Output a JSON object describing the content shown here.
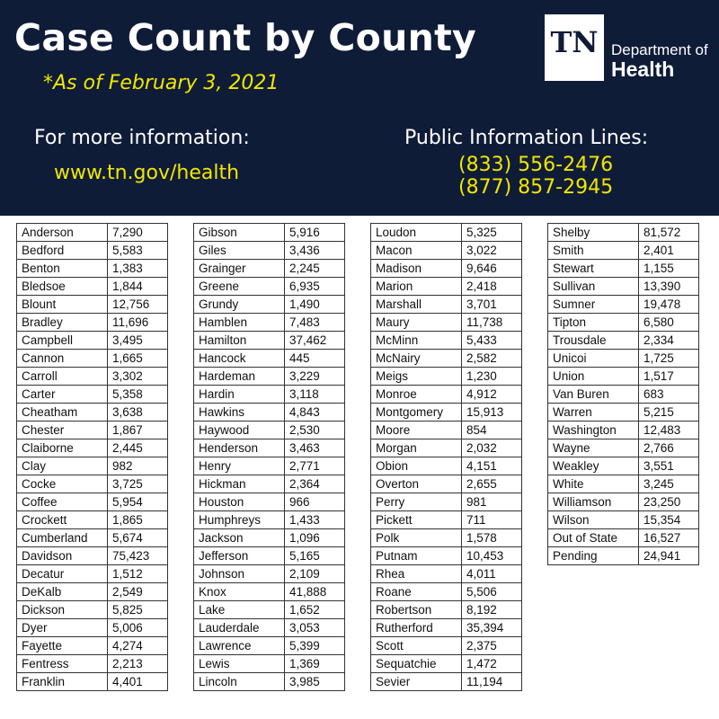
{
  "header": {
    "title": "Case Count by County",
    "as_of": "*As of February 3, 2021",
    "more_info_label": "For more information:",
    "website": "www.tn.gov/health",
    "public_lines_label": "Public Information Lines:",
    "phone_1": "(833) 556-2476",
    "phone_2": "(877) 857-2945",
    "logo": {
      "mark": "TN",
      "dept": "Department of",
      "name": "Health"
    }
  },
  "columns": [
    [
      [
        "Anderson",
        "7,290"
      ],
      [
        "Bedford",
        "5,583"
      ],
      [
        "Benton",
        "1,383"
      ],
      [
        "Bledsoe",
        "1,844"
      ],
      [
        "Blount",
        "12,756"
      ],
      [
        "Bradley",
        "11,696"
      ],
      [
        "Campbell",
        "3,495"
      ],
      [
        "Cannon",
        "1,665"
      ],
      [
        "Carroll",
        "3,302"
      ],
      [
        "Carter",
        "5,358"
      ],
      [
        "Cheatham",
        "3,638"
      ],
      [
        "Chester",
        "1,867"
      ],
      [
        "Claiborne",
        "2,445"
      ],
      [
        "Clay",
        "982"
      ],
      [
        "Cocke",
        "3,725"
      ],
      [
        "Coffee",
        "5,954"
      ],
      [
        "Crockett",
        "1,865"
      ],
      [
        "Cumberland",
        "5,674"
      ],
      [
        "Davidson",
        "75,423"
      ],
      [
        "Decatur",
        "1,512"
      ],
      [
        "DeKalb",
        "2,549"
      ],
      [
        "Dickson",
        "5,825"
      ],
      [
        "Dyer",
        "5,006"
      ],
      [
        "Fayette",
        "4,274"
      ],
      [
        "Fentress",
        "2,213"
      ],
      [
        "Franklin",
        "4,401"
      ]
    ],
    [
      [
        "Gibson",
        "5,916"
      ],
      [
        "Giles",
        "3,436"
      ],
      [
        "Grainger",
        "2,245"
      ],
      [
        "Greene",
        "6,935"
      ],
      [
        "Grundy",
        "1,490"
      ],
      [
        "Hamblen",
        "7,483"
      ],
      [
        "Hamilton",
        "37,462"
      ],
      [
        "Hancock",
        "445"
      ],
      [
        "Hardeman",
        "3,229"
      ],
      [
        "Hardin",
        "3,118"
      ],
      [
        "Hawkins",
        "4,843"
      ],
      [
        "Haywood",
        "2,530"
      ],
      [
        "Henderson",
        "3,463"
      ],
      [
        "Henry",
        "2,771"
      ],
      [
        "Hickman",
        "2,364"
      ],
      [
        "Houston",
        "966"
      ],
      [
        "Humphreys",
        "1,433"
      ],
      [
        "Jackson",
        "1,096"
      ],
      [
        "Jefferson",
        "5,165"
      ],
      [
        "Johnson",
        "2,109"
      ],
      [
        "Knox",
        "41,888"
      ],
      [
        "Lake",
        "1,652"
      ],
      [
        "Lauderdale",
        "3,053"
      ],
      [
        "Lawrence",
        "5,399"
      ],
      [
        "Lewis",
        "1,369"
      ],
      [
        "Lincoln",
        "3,985"
      ]
    ],
    [
      [
        "Loudon",
        "5,325"
      ],
      [
        "Macon",
        "3,022"
      ],
      [
        "Madison",
        "9,646"
      ],
      [
        "Marion",
        "2,418"
      ],
      [
        "Marshall",
        "3,701"
      ],
      [
        "Maury",
        "11,738"
      ],
      [
        "McMinn",
        "5,433"
      ],
      [
        "McNairy",
        "2,582"
      ],
      [
        "Meigs",
        "1,230"
      ],
      [
        "Monroe",
        "4,912"
      ],
      [
        "Montgomery",
        "15,913"
      ],
      [
        "Moore",
        "854"
      ],
      [
        "Morgan",
        "2,032"
      ],
      [
        "Obion",
        "4,151"
      ],
      [
        "Overton",
        "2,655"
      ],
      [
        "Perry",
        "981"
      ],
      [
        "Pickett",
        "711"
      ],
      [
        "Polk",
        "1,578"
      ],
      [
        "Putnam",
        "10,453"
      ],
      [
        "Rhea",
        "4,011"
      ],
      [
        "Roane",
        "5,506"
      ],
      [
        "Robertson",
        "8,192"
      ],
      [
        "Rutherford",
        "35,394"
      ],
      [
        "Scott",
        "2,375"
      ],
      [
        "Sequatchie",
        "1,472"
      ],
      [
        "Sevier",
        "11,194"
      ]
    ],
    [
      [
        "Shelby",
        "81,572"
      ],
      [
        "Smith",
        "2,401"
      ],
      [
        "Stewart",
        "1,155"
      ],
      [
        "Sullivan",
        "13,390"
      ],
      [
        "Sumner",
        "19,478"
      ],
      [
        "Tipton",
        "6,580"
      ],
      [
        "Trousdale",
        "2,334"
      ],
      [
        "Unicoi",
        "1,725"
      ],
      [
        "Union",
        "1,517"
      ],
      [
        "Van Buren",
        "683"
      ],
      [
        "Warren",
        "5,215"
      ],
      [
        "Washington",
        "12,483"
      ],
      [
        "Wayne",
        "2,766"
      ],
      [
        "Weakley",
        "3,551"
      ],
      [
        "White",
        "3,245"
      ],
      [
        "Williamson",
        "23,250"
      ],
      [
        "Wilson",
        "15,354"
      ],
      [
        "Out of State",
        "16,527"
      ],
      [
        "Pending",
        "24,941"
      ]
    ]
  ]
}
